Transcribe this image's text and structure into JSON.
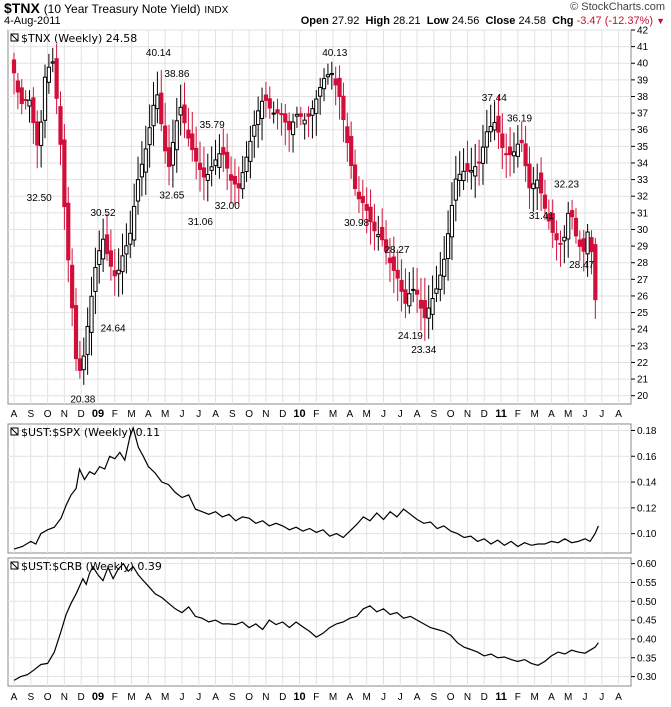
{
  "header": {
    "symbol": "$TNX",
    "description": "(10 Year Treasury Note Yield)",
    "exchange": "INDX",
    "date": "4-Aug-2011",
    "brand": "© StockCharts.com",
    "open_label": "Open",
    "open": "27.92",
    "high_label": "High",
    "high": "28.21",
    "low_label": "Low",
    "low": "24.56",
    "close_label": "Close",
    "close": "24.58",
    "chg_label": "Chg",
    "chg": "-3.47 (-12.37%)",
    "chg_color": "#c8102e"
  },
  "chart_data": [
    {
      "type": "candlestick",
      "title": "$TNX (Weekly) 24.58",
      "ylim": [
        19.5,
        42
      ],
      "yticks": [
        20,
        21,
        22,
        23,
        24,
        25,
        26,
        27,
        28,
        29,
        30,
        31,
        32,
        33,
        34,
        35,
        36,
        37,
        38,
        39,
        40,
        41,
        42
      ],
      "up_color": "#000000",
      "down_color": "#d0103a",
      "x_months": [
        "A",
        "S",
        "O",
        "N",
        "D",
        "09",
        "F",
        "M",
        "A",
        "M",
        "J",
        "J",
        "A",
        "S",
        "O",
        "N",
        "D",
        "10",
        "F",
        "M",
        "A",
        "M",
        "J",
        "J",
        "A",
        "S",
        "O",
        "N",
        "D",
        "11",
        "F",
        "M",
        "A",
        "M",
        "J",
        "J",
        "A"
      ],
      "anchors": [
        {
          "m": 0.0,
          "v": 40.0
        },
        {
          "m": 0.5,
          "v": 37.5
        },
        {
          "m": 1.0,
          "v": 38.0
        },
        {
          "m": 1.6,
          "v": 34.5
        },
        {
          "m": 1.9,
          "v": 39.0
        },
        {
          "m": 2.4,
          "v": 40.3
        },
        {
          "m": 2.8,
          "v": 36.5
        },
        {
          "m": 3.2,
          "v": 30.0
        },
        {
          "m": 3.6,
          "v": 25.0
        },
        {
          "m": 3.9,
          "v": 21.0
        },
        {
          "m": 4.3,
          "v": 22.5
        },
        {
          "m": 4.6,
          "v": 25.0
        },
        {
          "m": 5.0,
          "v": 28.0
        },
        {
          "m": 5.4,
          "v": 29.5
        },
        {
          "m": 5.8,
          "v": 28.0
        },
        {
          "m": 6.2,
          "v": 27.0
        },
        {
          "m": 6.6,
          "v": 28.5
        },
        {
          "m": 7.0,
          "v": 29.5
        },
        {
          "m": 7.5,
          "v": 33.0
        },
        {
          "m": 8.0,
          "v": 35.0
        },
        {
          "m": 8.6,
          "v": 38.5
        },
        {
          "m": 9.0,
          "v": 35.5
        },
        {
          "m": 9.3,
          "v": 33.5
        },
        {
          "m": 9.7,
          "v": 36.0
        },
        {
          "m": 10.0,
          "v": 37.5
        },
        {
          "m": 10.5,
          "v": 35.5
        },
        {
          "m": 11.0,
          "v": 34.0
        },
        {
          "m": 11.5,
          "v": 33.0
        },
        {
          "m": 12.0,
          "v": 34.0
        },
        {
          "m": 12.5,
          "v": 34.8
        },
        {
          "m": 13.0,
          "v": 33.0
        },
        {
          "m": 13.5,
          "v": 32.5
        },
        {
          "m": 14.0,
          "v": 34.5
        },
        {
          "m": 14.6,
          "v": 37.0
        },
        {
          "m": 15.0,
          "v": 38.0
        },
        {
          "m": 15.5,
          "v": 37.0
        },
        {
          "m": 16.0,
          "v": 37.0
        },
        {
          "m": 16.5,
          "v": 36.0
        },
        {
          "m": 17.0,
          "v": 37.0
        },
        {
          "m": 17.5,
          "v": 36.5
        },
        {
          "m": 18.0,
          "v": 37.5
        },
        {
          "m": 18.5,
          "v": 39.0
        },
        {
          "m": 19.0,
          "v": 39.5
        },
        {
          "m": 19.5,
          "v": 38.0
        },
        {
          "m": 20.0,
          "v": 35.0
        },
        {
          "m": 20.5,
          "v": 32.0
        },
        {
          "m": 21.0,
          "v": 31.5
        },
        {
          "m": 21.5,
          "v": 30.0
        },
        {
          "m": 22.0,
          "v": 29.5
        },
        {
          "m": 22.5,
          "v": 28.0
        },
        {
          "m": 23.0,
          "v": 27.0
        },
        {
          "m": 23.4,
          "v": 25.5
        },
        {
          "m": 23.8,
          "v": 26.5
        },
        {
          "m": 24.2,
          "v": 26.0
        },
        {
          "m": 24.5,
          "v": 24.5
        },
        {
          "m": 24.9,
          "v": 25.5
        },
        {
          "m": 25.3,
          "v": 26.5
        },
        {
          "m": 25.7,
          "v": 28.0
        },
        {
          "m": 26.0,
          "v": 30.0
        },
        {
          "m": 26.4,
          "v": 33.0
        },
        {
          "m": 26.8,
          "v": 33.5
        },
        {
          "m": 27.3,
          "v": 33.5
        },
        {
          "m": 27.8,
          "v": 34.0
        },
        {
          "m": 28.3,
          "v": 36.0
        },
        {
          "m": 28.8,
          "v": 36.5
        },
        {
          "m": 29.3,
          "v": 34.5
        },
        {
          "m": 29.8,
          "v": 34.5
        },
        {
          "m": 30.3,
          "v": 35.5
        },
        {
          "m": 30.8,
          "v": 32.5
        },
        {
          "m": 31.3,
          "v": 33.0
        },
        {
          "m": 31.8,
          "v": 31.0
        },
        {
          "m": 32.3,
          "v": 29.5
        },
        {
          "m": 32.8,
          "v": 29.0
        },
        {
          "m": 33.2,
          "v": 31.5
        },
        {
          "m": 33.6,
          "v": 29.5
        },
        {
          "m": 34.0,
          "v": 28.5
        },
        {
          "m": 34.3,
          "v": 30.0
        },
        {
          "m": 34.6,
          "v": 28.0
        },
        {
          "m": 34.8,
          "v": 24.6
        }
      ],
      "annotations": [
        {
          "m": 1.5,
          "v": 32.5,
          "label": "32.50",
          "pos": "below"
        },
        {
          "m": 2.5,
          "v": 40.3,
          "label": "",
          "pos": "above"
        },
        {
          "m": 4.1,
          "v": 20.38,
          "label": "20.38",
          "pos": "below"
        },
        {
          "m": 5.3,
          "v": 30.52,
          "label": "30.52",
          "pos": "above"
        },
        {
          "m": 5.9,
          "v": 24.64,
          "label": "24.64",
          "pos": "below"
        },
        {
          "m": 8.6,
          "v": 40.14,
          "label": "40.14",
          "pos": "above"
        },
        {
          "m": 9.4,
          "v": 32.65,
          "label": "32.65",
          "pos": "below"
        },
        {
          "m": 9.7,
          "v": 38.86,
          "label": "38.86",
          "pos": "above"
        },
        {
          "m": 11.1,
          "v": 31.06,
          "label": "31.06",
          "pos": "below"
        },
        {
          "m": 11.8,
          "v": 35.79,
          "label": "35.79",
          "pos": "above"
        },
        {
          "m": 12.7,
          "v": 32.0,
          "label": "32.00",
          "pos": "below"
        },
        {
          "m": 19.1,
          "v": 40.13,
          "label": "40.13",
          "pos": "above"
        },
        {
          "m": 20.4,
          "v": 30.98,
          "label": "30.98",
          "pos": "below"
        },
        {
          "m": 22.8,
          "v": 28.27,
          "label": "28.27",
          "pos": "above"
        },
        {
          "m": 23.6,
          "v": 24.19,
          "label": "24.19",
          "pos": "below"
        },
        {
          "m": 24.4,
          "v": 23.34,
          "label": "23.34",
          "pos": "below"
        },
        {
          "m": 28.6,
          "v": 37.44,
          "label": "37.44",
          "pos": "above"
        },
        {
          "m": 30.1,
          "v": 36.19,
          "label": "36.19",
          "pos": "above"
        },
        {
          "m": 31.4,
          "v": 31.41,
          "label": "31.41",
          "pos": "below"
        },
        {
          "m": 32.9,
          "v": 32.23,
          "label": "32.23",
          "pos": "above"
        },
        {
          "m": 33.8,
          "v": 28.47,
          "label": "28.47",
          "pos": "below"
        }
      ]
    },
    {
      "type": "line",
      "title": "$UST:$SPX (Weekly) 0.11",
      "ylim": [
        0.085,
        0.185
      ],
      "yticks": [
        0.1,
        0.12,
        0.14,
        0.16,
        0.18
      ],
      "ytick_labels": [
        "0.10",
        "0.12",
        "0.14",
        "0.16",
        "0.18"
      ],
      "points": [
        [
          0.0,
          0.088
        ],
        [
          0.5,
          0.09
        ],
        [
          1.0,
          0.094
        ],
        [
          1.3,
          0.092
        ],
        [
          1.6,
          0.1
        ],
        [
          2.0,
          0.103
        ],
        [
          2.4,
          0.105
        ],
        [
          2.8,
          0.112
        ],
        [
          3.1,
          0.122
        ],
        [
          3.4,
          0.13
        ],
        [
          3.7,
          0.135
        ],
        [
          3.9,
          0.15
        ],
        [
          4.2,
          0.142
        ],
        [
          4.5,
          0.148
        ],
        [
          4.8,
          0.146
        ],
        [
          5.1,
          0.152
        ],
        [
          5.4,
          0.15
        ],
        [
          5.7,
          0.16
        ],
        [
          6.0,
          0.158
        ],
        [
          6.3,
          0.163
        ],
        [
          6.6,
          0.157
        ],
        [
          6.9,
          0.175
        ],
        [
          7.1,
          0.182
        ],
        [
          7.4,
          0.167
        ],
        [
          7.7,
          0.16
        ],
        [
          8.0,
          0.152
        ],
        [
          8.4,
          0.147
        ],
        [
          8.8,
          0.14
        ],
        [
          9.2,
          0.138
        ],
        [
          9.6,
          0.132
        ],
        [
          10.0,
          0.128
        ],
        [
          10.4,
          0.13
        ],
        [
          10.8,
          0.119
        ],
        [
          11.2,
          0.117
        ],
        [
          11.6,
          0.115
        ],
        [
          12.0,
          0.117
        ],
        [
          12.4,
          0.113
        ],
        [
          12.8,
          0.115
        ],
        [
          13.2,
          0.11
        ],
        [
          13.6,
          0.113
        ],
        [
          14.0,
          0.112
        ],
        [
          14.4,
          0.108
        ],
        [
          14.8,
          0.11
        ],
        [
          15.2,
          0.106
        ],
        [
          15.6,
          0.108
        ],
        [
          16.0,
          0.106
        ],
        [
          16.4,
          0.103
        ],
        [
          16.8,
          0.105
        ],
        [
          17.2,
          0.102
        ],
        [
          17.6,
          0.104
        ],
        [
          18.0,
          0.101
        ],
        [
          18.4,
          0.103
        ],
        [
          18.8,
          0.098
        ],
        [
          19.2,
          0.1
        ],
        [
          19.6,
          0.097
        ],
        [
          20.0,
          0.102
        ],
        [
          20.4,
          0.107
        ],
        [
          20.8,
          0.113
        ],
        [
          21.2,
          0.11
        ],
        [
          21.6,
          0.116
        ],
        [
          22.0,
          0.111
        ],
        [
          22.4,
          0.117
        ],
        [
          22.8,
          0.113
        ],
        [
          23.2,
          0.119
        ],
        [
          23.6,
          0.115
        ],
        [
          24.0,
          0.111
        ],
        [
          24.4,
          0.108
        ],
        [
          24.8,
          0.109
        ],
        [
          25.2,
          0.104
        ],
        [
          25.6,
          0.106
        ],
        [
          26.0,
          0.102
        ],
        [
          26.4,
          0.1
        ],
        [
          26.8,
          0.097
        ],
        [
          27.2,
          0.098
        ],
        [
          27.6,
          0.094
        ],
        [
          28.0,
          0.096
        ],
        [
          28.4,
          0.092
        ],
        [
          28.8,
          0.095
        ],
        [
          29.2,
          0.091
        ],
        [
          29.6,
          0.094
        ],
        [
          30.0,
          0.09
        ],
        [
          30.4,
          0.093
        ],
        [
          30.8,
          0.091
        ],
        [
          31.2,
          0.092
        ],
        [
          31.6,
          0.092
        ],
        [
          32.0,
          0.094
        ],
        [
          32.4,
          0.093
        ],
        [
          32.8,
          0.096
        ],
        [
          33.2,
          0.093
        ],
        [
          33.6,
          0.094
        ],
        [
          34.0,
          0.096
        ],
        [
          34.3,
          0.094
        ],
        [
          34.6,
          0.1
        ],
        [
          34.8,
          0.106
        ]
      ]
    },
    {
      "type": "line",
      "title": "$UST:$CRB (Weekly) 0.39",
      "ylim": [
        0.275,
        0.615
      ],
      "yticks": [
        0.3,
        0.35,
        0.4,
        0.45,
        0.5,
        0.55,
        0.6
      ],
      "ytick_labels": [
        "0.30",
        "0.35",
        "0.40",
        "0.45",
        "0.50",
        "0.55",
        "0.60"
      ],
      "points": [
        [
          0.0,
          0.29
        ],
        [
          0.4,
          0.3
        ],
        [
          0.8,
          0.305
        ],
        [
          1.2,
          0.318
        ],
        [
          1.6,
          0.332
        ],
        [
          2.0,
          0.335
        ],
        [
          2.4,
          0.365
        ],
        [
          2.8,
          0.42
        ],
        [
          3.1,
          0.465
        ],
        [
          3.4,
          0.495
        ],
        [
          3.7,
          0.52
        ],
        [
          3.9,
          0.54
        ],
        [
          4.1,
          0.56
        ],
        [
          4.3,
          0.545
        ],
        [
          4.5,
          0.575
        ],
        [
          4.7,
          0.592
        ],
        [
          5.0,
          0.57
        ],
        [
          5.3,
          0.555
        ],
        [
          5.6,
          0.59
        ],
        [
          5.9,
          0.56
        ],
        [
          6.2,
          0.585
        ],
        [
          6.5,
          0.6
        ],
        [
          6.8,
          0.58
        ],
        [
          7.1,
          0.592
        ],
        [
          7.4,
          0.57
        ],
        [
          7.7,
          0.555
        ],
        [
          8.0,
          0.54
        ],
        [
          8.4,
          0.52
        ],
        [
          8.8,
          0.51
        ],
        [
          9.2,
          0.495
        ],
        [
          9.6,
          0.48
        ],
        [
          10.0,
          0.47
        ],
        [
          10.4,
          0.485
        ],
        [
          10.8,
          0.46
        ],
        [
          11.2,
          0.455
        ],
        [
          11.6,
          0.445
        ],
        [
          12.0,
          0.45
        ],
        [
          12.4,
          0.44
        ],
        [
          12.8,
          0.44
        ],
        [
          13.2,
          0.438
        ],
        [
          13.6,
          0.445
        ],
        [
          14.0,
          0.43
        ],
        [
          14.4,
          0.44
        ],
        [
          14.8,
          0.425
        ],
        [
          15.2,
          0.45
        ],
        [
          15.6,
          0.438
        ],
        [
          16.0,
          0.445
        ],
        [
          16.4,
          0.43
        ],
        [
          16.8,
          0.445
        ],
        [
          17.2,
          0.432
        ],
        [
          17.6,
          0.42
        ],
        [
          18.0,
          0.405
        ],
        [
          18.4,
          0.415
        ],
        [
          18.8,
          0.43
        ],
        [
          19.2,
          0.44
        ],
        [
          19.6,
          0.445
        ],
        [
          20.0,
          0.455
        ],
        [
          20.4,
          0.46
        ],
        [
          20.8,
          0.48
        ],
        [
          21.2,
          0.488
        ],
        [
          21.6,
          0.472
        ],
        [
          22.0,
          0.48
        ],
        [
          22.4,
          0.465
        ],
        [
          22.8,
          0.47
        ],
        [
          23.2,
          0.455
        ],
        [
          23.6,
          0.46
        ],
        [
          24.0,
          0.45
        ],
        [
          24.4,
          0.44
        ],
        [
          24.8,
          0.43
        ],
        [
          25.2,
          0.425
        ],
        [
          25.6,
          0.42
        ],
        [
          26.0,
          0.41
        ],
        [
          26.4,
          0.39
        ],
        [
          26.8,
          0.378
        ],
        [
          27.2,
          0.372
        ],
        [
          27.6,
          0.365
        ],
        [
          28.0,
          0.355
        ],
        [
          28.4,
          0.36
        ],
        [
          28.8,
          0.35
        ],
        [
          29.2,
          0.352
        ],
        [
          29.6,
          0.345
        ],
        [
          30.0,
          0.34
        ],
        [
          30.4,
          0.345
        ],
        [
          30.8,
          0.335
        ],
        [
          31.2,
          0.33
        ],
        [
          31.6,
          0.34
        ],
        [
          32.0,
          0.355
        ],
        [
          32.4,
          0.365
        ],
        [
          32.8,
          0.36
        ],
        [
          33.2,
          0.37
        ],
        [
          33.6,
          0.365
        ],
        [
          34.0,
          0.362
        ],
        [
          34.3,
          0.37
        ],
        [
          34.6,
          0.378
        ],
        [
          34.8,
          0.39
        ]
      ]
    }
  ]
}
